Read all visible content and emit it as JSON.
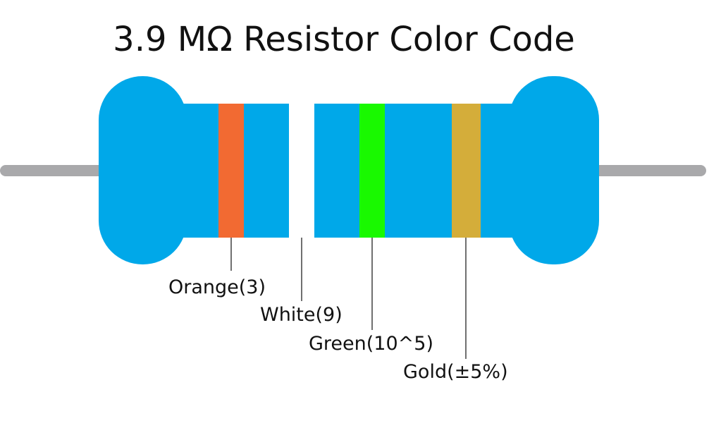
{
  "title": "3.9 MΩ Resistor Color Code",
  "colors": {
    "body": "#00a8e9",
    "lead": "#a9a9ab",
    "pointer": "#111111"
  },
  "bands": [
    {
      "name": "Orange",
      "color": "#f26a32",
      "label": "Orange(3)"
    },
    {
      "name": "White",
      "color": "#ffffff",
      "label": "White(9)"
    },
    {
      "name": "Green",
      "color": "#19f900",
      "label": "Green(10^5)"
    },
    {
      "name": "Gold",
      "color": "#d4ad3a",
      "label": "Gold(±5%)"
    }
  ]
}
